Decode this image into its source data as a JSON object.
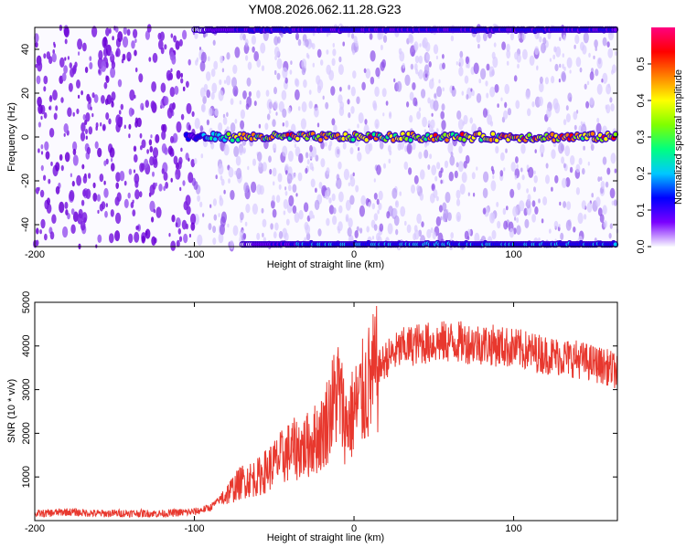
{
  "title": "YM08.2026.062.11.28.G23",
  "chart_data": [
    {
      "type": "heatmap",
      "xlabel": "Height of straight line (km)",
      "ylabel": "Frequency (Hz)",
      "xlim": [
        -200,
        165
      ],
      "ylim": [
        -50,
        50
      ],
      "xticks": [
        "-200",
        "-100",
        "0",
        "100"
      ],
      "yticks": [
        "40",
        "20",
        "0",
        "-20",
        "-40"
      ],
      "colorbar": {
        "label": "Normalized spectral amplitude",
        "range": [
          0.0,
          0.6
        ],
        "ticks": [
          "0.5",
          "0.4",
          "0.3",
          "0.2",
          "0.1",
          "0.0"
        ],
        "colors": [
          "#f8f8ff",
          "#7a00ff",
          "#0000ff",
          "#00c8ff",
          "#00ff80",
          "#80ff00",
          "#ffff00",
          "#ff8000",
          "#ff0000",
          "#ff0080"
        ]
      },
      "features": [
        {
          "name": "",
          "x_start": -105,
          "x_end": 165,
          "freq_hz": 0,
          "peak_amplitude": 0.55
        },
        {
          "name": "",
          "x_start": -70,
          "x_end": 165,
          "freq_hz": -50,
          "peak_amplitude": 0.25
        },
        {
          "name": "",
          "x_start": -100,
          "x_end": 165,
          "freq_hz": 50,
          "peak_amplitude": 0.2
        }
      ],
      "background": {
        "left_of_x": -100,
        "left_amplitude": 0.08,
        "right_amplitude": 0.02
      }
    },
    {
      "type": "line",
      "xlabel": "Height of straight line (km)",
      "ylabel": "SNR (10 * v/v)",
      "xlim": [
        -200,
        165
      ],
      "ylim": [
        0,
        5000
      ],
      "xticks": [
        "-200",
        "-100",
        "0",
        "100"
      ],
      "yticks": [
        "5000",
        "4000",
        "3000",
        "2000",
        "1000"
      ],
      "series": [
        {
          "name": "",
          "color": "#e8382e",
          "x": [
            -200,
            -180,
            -160,
            -140,
            -120,
            -100,
            -90,
            -80,
            -70,
            -60,
            -50,
            -40,
            -30,
            -20,
            -15,
            -10,
            -5,
            0,
            10,
            20,
            30,
            40,
            60,
            80,
            100,
            120,
            140,
            160,
            165
          ],
          "y": [
            150,
            200,
            160,
            170,
            160,
            200,
            300,
            600,
            900,
            1000,
            1300,
            1600,
            1700,
            2000,
            2500,
            3000,
            2200,
            2500,
            3200,
            3700,
            3950,
            4050,
            4100,
            4050,
            3950,
            3800,
            3700,
            3500,
            3400
          ]
        }
      ]
    }
  ]
}
